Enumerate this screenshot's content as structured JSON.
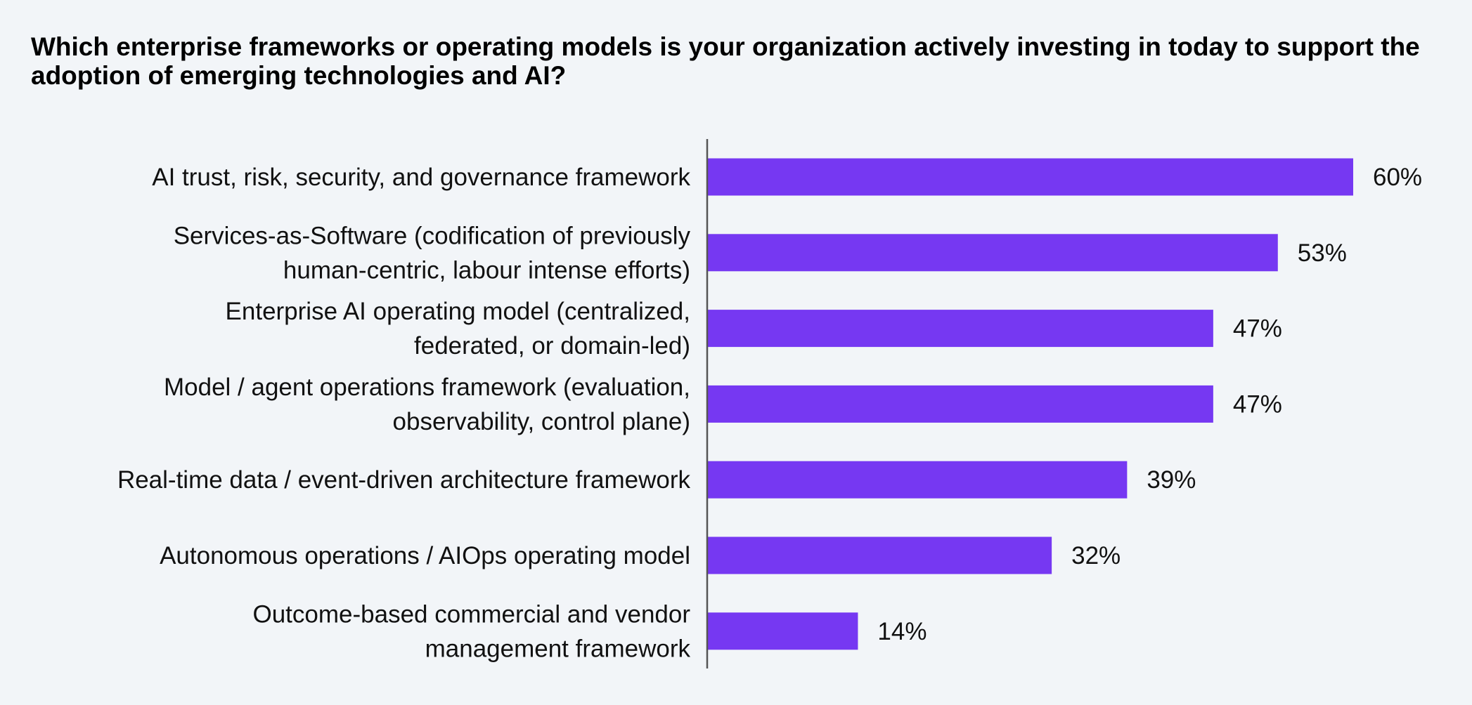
{
  "chart_data": {
    "type": "bar",
    "orientation": "horizontal",
    "title": "Which enterprise frameworks or operating models is your organization actively investing in today to support the adoption of emerging technologies and AI?",
    "categories": [
      [
        "AI trust, risk, security, and governance framework"
      ],
      [
        "Services-as-Software (codification of previously",
        "human-centric, labour intense efforts)"
      ],
      [
        "Enterprise AI operating model (centralized,",
        "federated, or domain-led)"
      ],
      [
        "Model / agent operations framework (evaluation,",
        "observability, control plane)"
      ],
      [
        "Real-time data / event-driven architecture framework"
      ],
      [
        "Autonomous operations / AIOps operating model"
      ],
      [
        "Outcome-based commercial and vendor",
        "management framework"
      ]
    ],
    "values": [
      60,
      53,
      47,
      47,
      39,
      32,
      14
    ],
    "value_labels": [
      "60%",
      "53%",
      "47%",
      "47%",
      "39%",
      "32%",
      "14%"
    ],
    "unit": "%",
    "xlim": [
      0,
      60
    ],
    "grid": false,
    "legend": "none",
    "bar_color": "#7638f2",
    "background_color": "#f2f5f8",
    "axis_color": "#555555"
  }
}
